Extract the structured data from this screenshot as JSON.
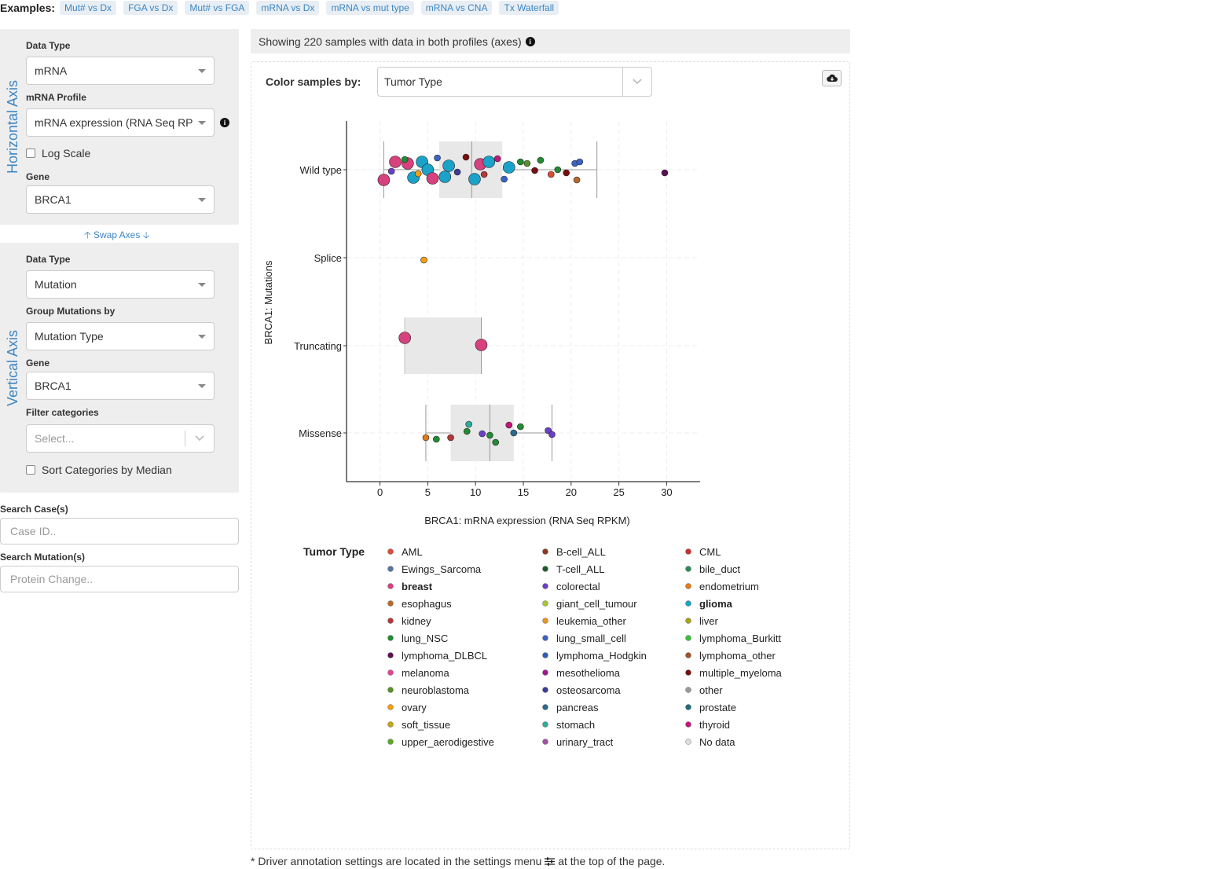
{
  "examples": {
    "label": "Examples:",
    "items": [
      "Mut# vs Dx",
      "FGA vs Dx",
      "Mut# vs FGA",
      "mRNA vs Dx",
      "mRNA vs mut type",
      "mRNA vs CNA",
      "Tx Waterfall"
    ]
  },
  "horizontal": {
    "axis_title": "Horizontal Axis",
    "data_type_label": "Data Type",
    "data_type_value": "mRNA",
    "profile_label": "mRNA Profile",
    "profile_value": "mRNA expression (RNA Seq RPKM)",
    "log_scale_label": "Log Scale",
    "gene_label": "Gene",
    "gene_value": "BRCA1"
  },
  "swap_label": "Swap Axes",
  "vertical": {
    "axis_title": "Vertical Axis",
    "data_type_label": "Data Type",
    "data_type_value": "Mutation",
    "group_label": "Group Mutations by",
    "group_value": "Mutation Type",
    "gene_label": "Gene",
    "gene_value": "BRCA1",
    "filter_label": "Filter categories",
    "filter_placeholder": "Select...",
    "sort_label": "Sort Categories by Median"
  },
  "search": {
    "case_label": "Search Case(s)",
    "case_placeholder": "Case ID..",
    "mutation_label": "Search Mutation(s)",
    "mutation_placeholder": "Protein Change.."
  },
  "info_bar": "Showing 220 samples with data in both profiles (axes)",
  "color_by": {
    "label": "Color samples by:",
    "value": "Tumor Type"
  },
  "footnote": {
    "before": "* Driver annotation settings are located in the settings menu",
    "after": "at the top of the page."
  },
  "colors": {
    "accent": "#3c86c4",
    "breast": "#d6417e",
    "glioma": "#1aa2c9",
    "box_fill": "#e8e8e8"
  },
  "chart_data": {
    "type": "box+scatter",
    "xlabel": "BRCA1: mRNA expression (RNA Seq RPKM)",
    "ylabel": "BRCA1: Mutations",
    "xlim": [
      -3.5,
      33.5
    ],
    "xticks": [
      0,
      5,
      10,
      15,
      20,
      25,
      30
    ],
    "categories": [
      "Wild type",
      "Splice",
      "Truncating",
      "Missense"
    ],
    "boxes": [
      {
        "category": "Wild type",
        "whisker_low": 0.4,
        "q1": 6.2,
        "median": 9.6,
        "q3": 12.8,
        "whisker_high": 22.7
      },
      {
        "category": "Truncating",
        "whisker_low": 2.6,
        "q1": 2.6,
        "median": 10.6,
        "q3": 10.6,
        "whisker_high": 10.6
      },
      {
        "category": "Missense",
        "whisker_low": 4.8,
        "q1": 7.4,
        "median": 11.5,
        "q3": 14.0,
        "whisker_high": 18.0
      }
    ],
    "points": [
      {
        "category": "Wild type",
        "x": 0.4,
        "jitter": 0.13,
        "type": "breast",
        "big": true
      },
      {
        "category": "Wild type",
        "x": 1.6,
        "jitter": -0.1,
        "type": "breast",
        "big": true
      },
      {
        "category": "Wild type",
        "x": 2.9,
        "jitter": -0.08,
        "type": "breast",
        "big": true
      },
      {
        "category": "Wild type",
        "x": 3.5,
        "jitter": 0.1,
        "type": "glioma",
        "big": true
      },
      {
        "category": "Wild type",
        "x": 4.4,
        "jitter": -0.1,
        "type": "glioma",
        "big": true
      },
      {
        "category": "Wild type",
        "x": 5.0,
        "jitter": 0.0,
        "type": "glioma",
        "big": true
      },
      {
        "category": "Wild type",
        "x": 5.5,
        "jitter": 0.11,
        "type": "breast",
        "big": true
      },
      {
        "category": "Wild type",
        "x": 6.8,
        "jitter": 0.09,
        "type": "glioma",
        "big": true
      },
      {
        "category": "Wild type",
        "x": 7.2,
        "jitter": -0.05,
        "type": "glioma",
        "big": true
      },
      {
        "category": "Wild type",
        "x": 9.9,
        "jitter": 0.12,
        "type": "glioma",
        "big": true
      },
      {
        "category": "Wild type",
        "x": 10.5,
        "jitter": -0.07,
        "type": "breast",
        "big": true
      },
      {
        "category": "Wild type",
        "x": 11.4,
        "jitter": -0.1,
        "type": "glioma",
        "big": true
      },
      {
        "category": "Wild type",
        "x": 13.5,
        "jitter": -0.03,
        "type": "glioma",
        "big": true
      },
      {
        "category": "Wild type",
        "x": 1.2,
        "jitter": 0.02,
        "type": "colorectal",
        "big": false
      },
      {
        "category": "Wild type",
        "x": 2.6,
        "jitter": -0.13,
        "type": "lung_NSC",
        "big": false
      },
      {
        "category": "Wild type",
        "x": 4.0,
        "jitter": 0.05,
        "type": "ovary",
        "big": false
      },
      {
        "category": "Wild type",
        "x": 6.0,
        "jitter": -0.15,
        "type": "lung_small_cell",
        "big": false
      },
      {
        "category": "Wild type",
        "x": 8.1,
        "jitter": 0.03,
        "type": "osteosarcoma",
        "big": false
      },
      {
        "category": "Wild type",
        "x": 9.0,
        "jitter": -0.16,
        "type": "multiple_myeloma",
        "big": false
      },
      {
        "category": "Wild type",
        "x": 10.9,
        "jitter": 0.06,
        "type": "kidney",
        "big": false
      },
      {
        "category": "Wild type",
        "x": 12.3,
        "jitter": -0.14,
        "type": "thyroid",
        "big": false
      },
      {
        "category": "Wild type",
        "x": 13.0,
        "jitter": 0.12,
        "type": "lung_small_cell",
        "big": false
      },
      {
        "category": "Wild type",
        "x": 14.7,
        "jitter": -0.1,
        "type": "lung_NSC",
        "big": false
      },
      {
        "category": "Wild type",
        "x": 15.4,
        "jitter": -0.08,
        "type": "neuroblastoma",
        "big": false
      },
      {
        "category": "Wild type",
        "x": 16.2,
        "jitter": 0.01,
        "type": "multiple_myeloma",
        "big": false
      },
      {
        "category": "Wild type",
        "x": 16.8,
        "jitter": -0.12,
        "type": "lung_NSC",
        "big": false
      },
      {
        "category": "Wild type",
        "x": 17.9,
        "jitter": 0.06,
        "type": "AML",
        "big": false
      },
      {
        "category": "Wild type",
        "x": 18.6,
        "jitter": 0.0,
        "type": "lung_NSC",
        "big": false
      },
      {
        "category": "Wild type",
        "x": 19.5,
        "jitter": 0.04,
        "type": "multiple_myeloma",
        "big": false
      },
      {
        "category": "Wild type",
        "x": 20.4,
        "jitter": -0.08,
        "type": "lung_small_cell",
        "big": false
      },
      {
        "category": "Wild type",
        "x": 20.6,
        "jitter": 0.13,
        "type": "esophagus",
        "big": false
      },
      {
        "category": "Wild type",
        "x": 20.9,
        "jitter": -0.1,
        "type": "lung_small_cell",
        "big": false
      },
      {
        "category": "Wild type",
        "x": 29.8,
        "jitter": 0.04,
        "type": "lymphoma_DLBCL",
        "big": false
      },
      {
        "category": "Splice",
        "x": 4.6,
        "jitter": 0.03,
        "type": "ovary",
        "big": false
      },
      {
        "category": "Truncating",
        "x": 2.6,
        "jitter": -0.1,
        "type": "breast",
        "big": true
      },
      {
        "category": "Truncating",
        "x": 10.6,
        "jitter": -0.01,
        "type": "breast",
        "big": true
      },
      {
        "category": "Missense",
        "x": 4.8,
        "jitter": 0.06,
        "type": "endometrium",
        "big": false
      },
      {
        "category": "Missense",
        "x": 5.9,
        "jitter": 0.08,
        "type": "lung_NSC",
        "big": false
      },
      {
        "category": "Missense",
        "x": 7.4,
        "jitter": 0.06,
        "type": "kidney",
        "big": false
      },
      {
        "category": "Missense",
        "x": 9.1,
        "jitter": -0.02,
        "type": "lung_NSC",
        "big": false
      },
      {
        "category": "Missense",
        "x": 9.3,
        "jitter": -0.11,
        "type": "stomach",
        "big": false
      },
      {
        "category": "Missense",
        "x": 10.7,
        "jitter": 0.01,
        "type": "colorectal",
        "big": false
      },
      {
        "category": "Missense",
        "x": 11.5,
        "jitter": 0.03,
        "type": "lung_NSC",
        "big": false
      },
      {
        "category": "Missense",
        "x": 12.1,
        "jitter": 0.12,
        "type": "lung_NSC",
        "big": false
      },
      {
        "category": "Missense",
        "x": 13.5,
        "jitter": -0.1,
        "type": "thyroid",
        "big": false
      },
      {
        "category": "Missense",
        "x": 14.0,
        "jitter": 0.0,
        "type": "pancreas",
        "big": false
      },
      {
        "category": "Missense",
        "x": 14.7,
        "jitter": -0.08,
        "type": "lung_NSC",
        "big": false
      },
      {
        "category": "Missense",
        "x": 17.6,
        "jitter": -0.03,
        "type": "colorectal",
        "big": false
      },
      {
        "category": "Missense",
        "x": 18.0,
        "jitter": 0.02,
        "type": "colorectal",
        "big": false
      }
    ],
    "legend": {
      "title": "Tumor Type",
      "items": [
        {
          "label": "AML",
          "color": "#dd4b39",
          "bold": false
        },
        {
          "label": "B-cell_ALL",
          "color": "#8b3a20",
          "bold": false
        },
        {
          "label": "CML",
          "color": "#c9302c",
          "bold": false
        },
        {
          "label": "Ewings_Sarcoma",
          "color": "#56779e",
          "bold": false
        },
        {
          "label": "T-cell_ALL",
          "color": "#1e5a2e",
          "bold": false
        },
        {
          "label": "bile_duct",
          "color": "#2e8b57",
          "bold": false
        },
        {
          "label": "breast",
          "color": "#d6417e",
          "bold": true
        },
        {
          "label": "colorectal",
          "color": "#6a3fc8",
          "bold": false
        },
        {
          "label": "endometrium",
          "color": "#e07b1c",
          "bold": false
        },
        {
          "label": "esophagus",
          "color": "#b8692d",
          "bold": false
        },
        {
          "label": "giant_cell_tumour",
          "color": "#a6c52f",
          "bold": false
        },
        {
          "label": "glioma",
          "color": "#1aa2c9",
          "bold": true
        },
        {
          "label": "kidney",
          "color": "#b03a3a",
          "bold": false
        },
        {
          "label": "leukemia_other",
          "color": "#e8951e",
          "bold": false
        },
        {
          "label": "liver",
          "color": "#a8a21c",
          "bold": false
        },
        {
          "label": "lung_NSC",
          "color": "#228b33",
          "bold": false
        },
        {
          "label": "lung_small_cell",
          "color": "#3a63c6",
          "bold": false
        },
        {
          "label": "lymphoma_Burkitt",
          "color": "#3cbd3c",
          "bold": false
        },
        {
          "label": "lymphoma_DLBCL",
          "color": "#5c1054",
          "bold": false
        },
        {
          "label": "lymphoma_Hodgkin",
          "color": "#2f5fb3",
          "bold": false
        },
        {
          "label": "lymphoma_other",
          "color": "#a0522d",
          "bold": false
        },
        {
          "label": "melanoma",
          "color": "#e04594",
          "bold": false
        },
        {
          "label": "mesothelioma",
          "color": "#9c1a8e",
          "bold": false
        },
        {
          "label": "multiple_myeloma",
          "color": "#7a0d0d",
          "bold": false
        },
        {
          "label": "neuroblastoma",
          "color": "#5a8f2e",
          "bold": false
        },
        {
          "label": "osteosarcoma",
          "color": "#3b3b98",
          "bold": false
        },
        {
          "label": "other",
          "color": "#999999",
          "bold": false
        },
        {
          "label": "ovary",
          "color": "#f29d12",
          "bold": false
        },
        {
          "label": "pancreas",
          "color": "#2b6a8c",
          "bold": false
        },
        {
          "label": "prostate",
          "color": "#1d6c7a",
          "bold": false
        },
        {
          "label": "soft_tissue",
          "color": "#c2a318",
          "bold": false
        },
        {
          "label": "stomach",
          "color": "#2eab9a",
          "bold": false
        },
        {
          "label": "thyroid",
          "color": "#c2177a",
          "bold": false
        },
        {
          "label": "upper_aerodigestive",
          "color": "#5aa82a",
          "bold": false
        },
        {
          "label": "urinary_tract",
          "color": "#a453a4",
          "bold": false
        },
        {
          "label": "No data",
          "color": "#dddddd",
          "bold": false
        }
      ]
    }
  }
}
